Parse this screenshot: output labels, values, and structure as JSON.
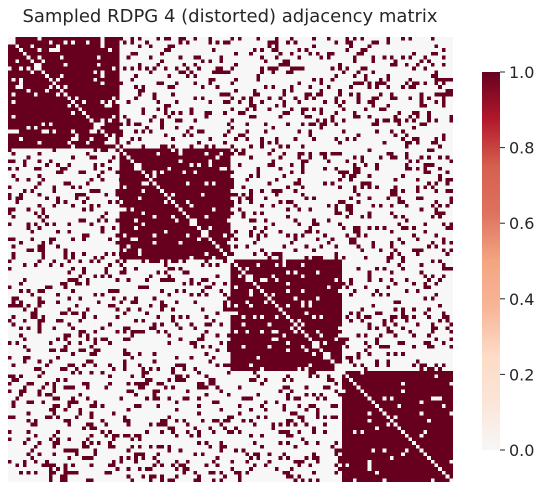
{
  "chart_data": {
    "type": "heatmap",
    "title": "Sampled RDPG 4 (distorted) adjacency matrix",
    "n_nodes": 120,
    "n_blocks": 4,
    "block_size": 30,
    "within_block_density": 0.92,
    "between_block_density": 0.18,
    "diagonal_value": 0,
    "value_range": [
      0,
      1
    ],
    "colormap": "RdBu_r (upper half)",
    "colorbar": {
      "ticks": [
        "0.0",
        "0.2",
        "0.4",
        "0.6",
        "0.8",
        "1.0"
      ],
      "tick_values": [
        0,
        0.2,
        0.4,
        0.6,
        0.8,
        1.0
      ],
      "color_low": "#f7f7f7",
      "color_high": "#67001f"
    },
    "grid": false,
    "legend": "colorbar-right"
  }
}
